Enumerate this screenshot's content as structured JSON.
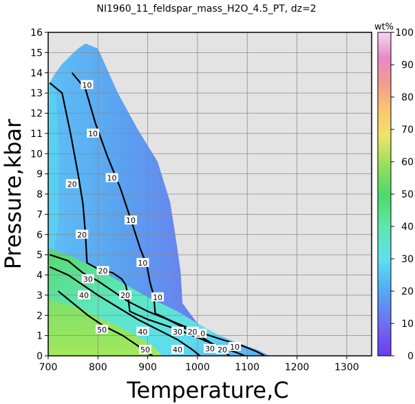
{
  "chart_data": {
    "type": "heatmap",
    "title": "NI1960_11_feldspar_mass_H2O_4.5_PT, dz=2",
    "xlabel": "Temperature,C",
    "ylabel": "Pressure,kbar",
    "xlim": [
      700,
      1350
    ],
    "ylim": [
      0,
      16
    ],
    "x_ticks": [
      "700",
      "800",
      "900",
      "1000",
      "1100",
      "1200",
      "1300"
    ],
    "y_ticks": [
      "0",
      "1",
      "2",
      "3",
      "4",
      "5",
      "6",
      "7",
      "8",
      "9",
      "10",
      "11",
      "12",
      "13",
      "14",
      "15",
      "16"
    ],
    "grid": true,
    "colorbar": {
      "label": "wt%",
      "range": [
        0,
        100
      ],
      "ticks": [
        "0",
        "10",
        "20",
        "30",
        "40",
        "50",
        "60",
        "70",
        "80",
        "90",
        "100"
      ]
    },
    "colors": {
      "background": "#e3e3e3",
      "low": "#7a3cf2",
      "mid_low": "#4fa0f2",
      "mid": "#62e8f0",
      "mid_high": "#5fd28a",
      "high": "#9fe860"
    },
    "field_boundary": [
      [
        703,
        13.5
      ],
      [
        712,
        13.9
      ],
      [
        727,
        14.4
      ],
      [
        743,
        14.8
      ],
      [
        760,
        15.2
      ],
      [
        775,
        15.45
      ],
      [
        800,
        15.2
      ],
      [
        840,
        13.0
      ],
      [
        880,
        11.2
      ],
      [
        920,
        9.6
      ],
      [
        945,
        7.6
      ],
      [
        956,
        5.9
      ],
      [
        966,
        4.2
      ],
      [
        970,
        2.6
      ],
      [
        1000,
        1.6
      ],
      [
        1040,
        1.05
      ],
      [
        1080,
        0.65
      ],
      [
        1120,
        0.3
      ],
      [
        1145,
        0.0
      ],
      [
        700,
        0.0
      ]
    ],
    "contours": [
      {
        "level": 10,
        "points": [
          [
            748,
            14.0
          ],
          [
            775,
            13.2
          ],
          [
            795,
            11.5
          ],
          [
            820,
            9.8
          ],
          [
            845,
            8.3
          ],
          [
            868,
            6.6
          ],
          [
            885,
            5.3
          ],
          [
            898,
            4.5
          ],
          [
            905,
            3.6
          ],
          [
            912,
            3.0
          ],
          [
            915,
            2.1
          ],
          [
            950,
            1.7
          ],
          [
            1000,
            1.2
          ],
          [
            1050,
            0.8
          ],
          [
            1090,
            0.5
          ],
          [
            1120,
            0.2
          ],
          [
            1135,
            0.0
          ]
        ],
        "labels": [
          [
            778,
            13.4
          ],
          [
            790,
            11.0
          ],
          [
            828,
            8.8
          ],
          [
            866,
            6.7
          ],
          [
            890,
            4.6
          ],
          [
            920,
            2.9
          ],
          [
            1006,
            1.1
          ],
          [
            1075,
            0.45
          ]
        ]
      },
      {
        "level": 20,
        "points": [
          [
            703,
            13.5
          ],
          [
            728,
            13.0
          ],
          [
            745,
            11.0
          ],
          [
            760,
            9.0
          ],
          [
            770,
            7.5
          ],
          [
            775,
            6.0
          ],
          [
            778,
            4.6
          ],
          [
            800,
            4.3
          ],
          [
            830,
            4.1
          ],
          [
            848,
            3.8
          ],
          [
            856,
            3.5
          ],
          [
            860,
            3.0
          ],
          [
            864,
            2.2
          ],
          [
            900,
            1.8
          ],
          [
            960,
            1.3
          ],
          [
            1010,
            0.8
          ],
          [
            1050,
            0.4
          ],
          [
            1080,
            0.15
          ],
          [
            1095,
            0.0
          ]
        ],
        "labels": [
          [
            748,
            8.5
          ],
          [
            768,
            6.0
          ],
          [
            810,
            4.2
          ],
          [
            855,
            3.0
          ],
          [
            990,
            1.2
          ],
          [
            1050,
            0.3
          ]
        ]
      },
      {
        "level": 30,
        "points": [
          [
            703,
            5.0
          ],
          [
            740,
            4.7
          ],
          [
            770,
            4.1
          ],
          [
            800,
            3.7
          ],
          [
            830,
            3.2
          ],
          [
            860,
            2.7
          ],
          [
            900,
            2.2
          ],
          [
            940,
            1.8
          ],
          [
            980,
            1.3
          ],
          [
            1010,
            0.9
          ],
          [
            1040,
            0.45
          ],
          [
            1065,
            0.0
          ]
        ],
        "labels": [
          [
            780,
            3.8
          ],
          [
            960,
            1.2
          ],
          [
            1025,
            0.35
          ]
        ]
      },
      {
        "level": 40,
        "points": [
          [
            703,
            4.4
          ],
          [
            740,
            4.0
          ],
          [
            770,
            3.5
          ],
          [
            800,
            3.0
          ],
          [
            840,
            2.4
          ],
          [
            880,
            1.8
          ],
          [
            920,
            1.3
          ],
          [
            960,
            0.8
          ],
          [
            990,
            0.3
          ],
          [
            1005,
            0.0
          ]
        ],
        "labels": [
          [
            772,
            3.0
          ],
          [
            890,
            1.2
          ],
          [
            960,
            0.3
          ]
        ]
      },
      {
        "level": 50,
        "points": [
          [
            720,
            3.2
          ],
          [
            750,
            2.6
          ],
          [
            780,
            2.0
          ],
          [
            810,
            1.5
          ],
          [
            850,
            1.0
          ],
          [
            880,
            0.5
          ],
          [
            900,
            0.15
          ],
          [
            910,
            0.0
          ]
        ],
        "labels": [
          [
            808,
            1.3
          ],
          [
            895,
            0.3
          ]
        ]
      }
    ]
  }
}
